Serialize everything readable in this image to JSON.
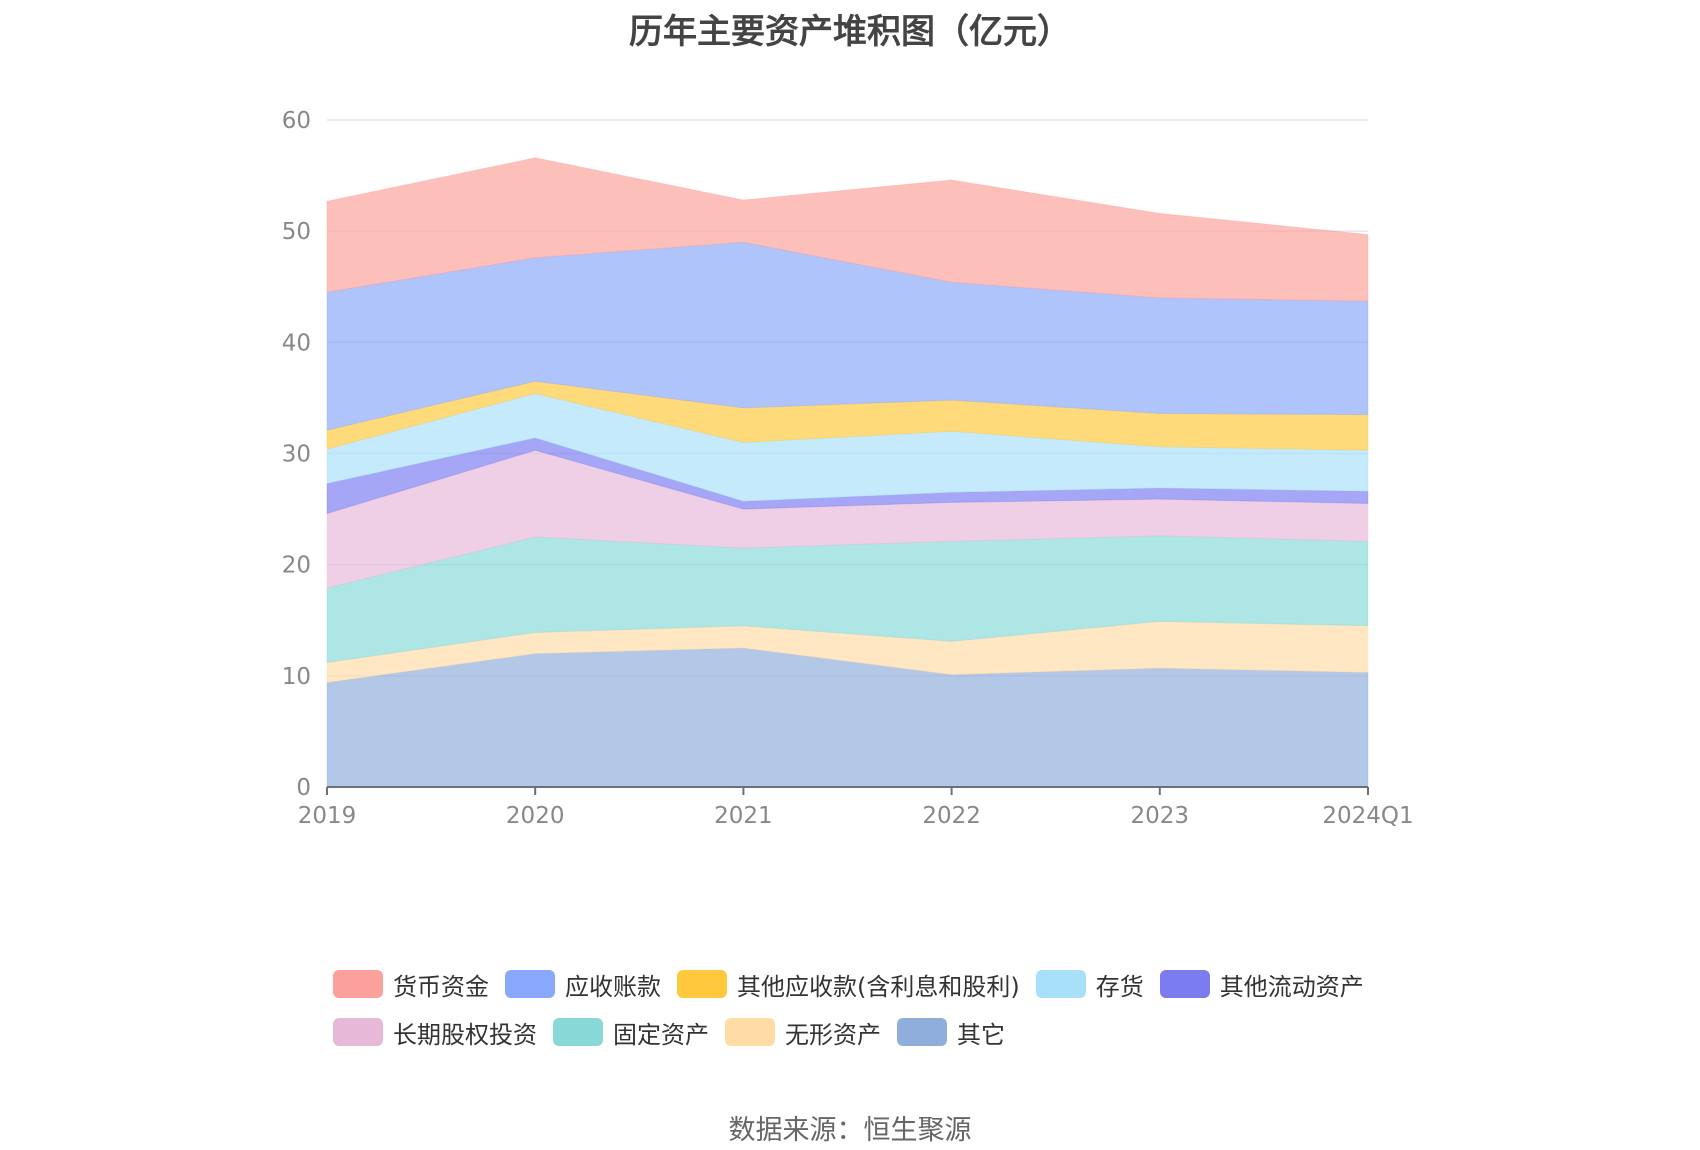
{
  "chart_data": {
    "type": "area",
    "stacked": true,
    "title": "历年主要资产堆积图（亿元）",
    "categories": [
      "2019",
      "2020",
      "2021",
      "2022",
      "2023",
      "2024Q1"
    ],
    "ylim": [
      0,
      60
    ],
    "yticks": [
      "0",
      "10",
      "20",
      "30",
      "40",
      "50",
      "60"
    ],
    "grid": "horizontal",
    "legend_position": "bottom",
    "series": [
      {
        "name": "其它",
        "color": "#8faedb",
        "values": [
          9.4,
          12.0,
          12.5,
          10.1,
          10.7,
          10.3
        ]
      },
      {
        "name": "无形资产",
        "color": "#ffdca6",
        "values": [
          1.8,
          1.9,
          2.0,
          3.0,
          4.2,
          4.2
        ]
      },
      {
        "name": "固定资产",
        "color": "#88d8d8",
        "values": [
          6.7,
          8.6,
          7.0,
          9.0,
          7.7,
          7.6
        ]
      },
      {
        "name": "长期股权投资",
        "color": "#e8b8d8",
        "values": [
          6.7,
          7.8,
          3.5,
          3.5,
          3.3,
          3.4
        ]
      },
      {
        "name": "其他流动资产",
        "color": "#7a7cf0",
        "values": [
          2.7,
          1.1,
          0.7,
          0.9,
          1.0,
          1.1
        ]
      },
      {
        "name": "存货",
        "color": "#a8e0fa",
        "values": [
          3.1,
          4.0,
          5.3,
          5.5,
          3.7,
          3.7
        ]
      },
      {
        "name": "其他应收款(含利息和股利)",
        "color": "#ffc83d",
        "values": [
          1.7,
          1.1,
          3.1,
          2.8,
          3.0,
          3.2
        ]
      },
      {
        "name": "应收账款",
        "color": "#8aa8fb",
        "values": [
          12.4,
          11.1,
          14.9,
          10.6,
          10.4,
          10.2
        ]
      },
      {
        "name": "货币资金",
        "color": "#fba09a",
        "values": [
          8.2,
          9.0,
          3.8,
          9.2,
          7.6,
          6.0
        ]
      }
    ]
  },
  "legend_rows": [
    [
      "货币资金",
      "应收账款",
      "其他应收款(含利息和股利)",
      "存货",
      "其他流动资产"
    ],
    [
      "长期股权投资",
      "固定资产",
      "无形资产",
      "其它"
    ]
  ],
  "source": "数据来源：恒生聚源"
}
